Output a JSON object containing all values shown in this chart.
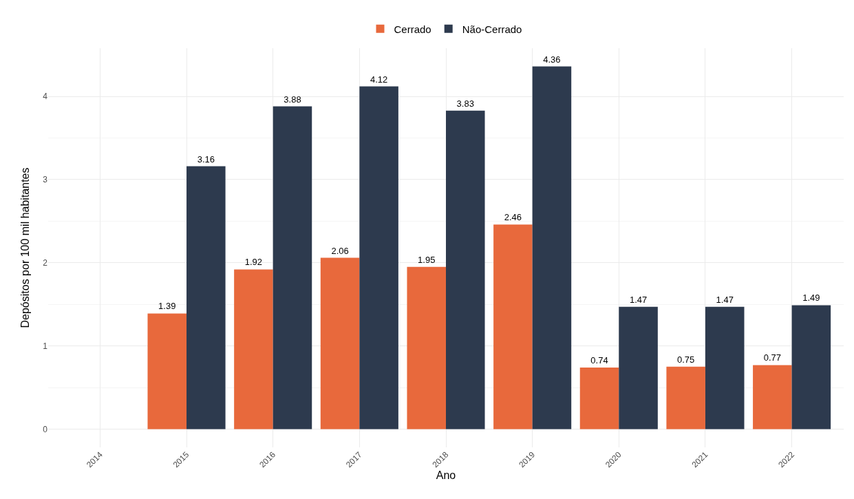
{
  "chart_data": {
    "type": "bar",
    "xlabel": "Ano",
    "ylabel": "Depósitos por 100 mil habitantes",
    "categories": [
      "2014",
      "2015",
      "2016",
      "2017",
      "2018",
      "2019",
      "2020",
      "2021",
      "2022"
    ],
    "series": [
      {
        "name": "Cerrado",
        "color": "#e8693c",
        "values": [
          null,
          1.39,
          1.92,
          2.06,
          1.95,
          2.46,
          0.74,
          0.75,
          0.77
        ]
      },
      {
        "name": "Não-Cerrado",
        "color": "#2d3a4e",
        "values": [
          null,
          3.16,
          3.88,
          4.12,
          3.83,
          4.36,
          1.47,
          1.47,
          1.49
        ]
      }
    ],
    "ylim": [
      -0.22,
      4.58
    ],
    "yticks": [
      0,
      1,
      2,
      3,
      4
    ],
    "grid": true,
    "legend": "top",
    "data_labels": true
  }
}
